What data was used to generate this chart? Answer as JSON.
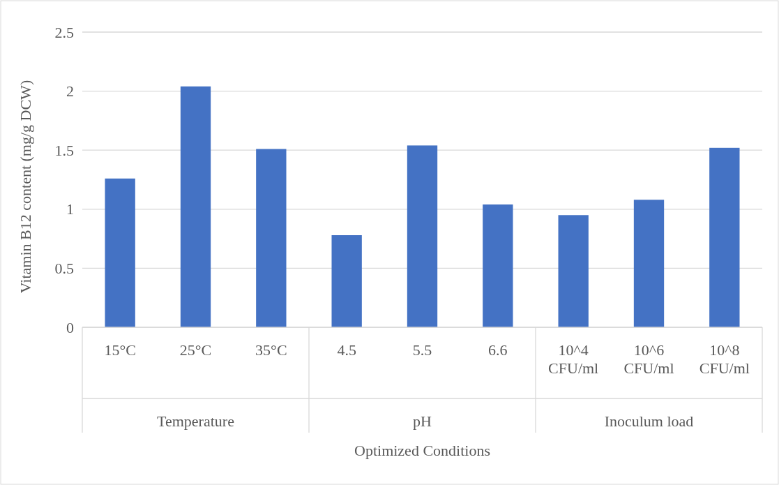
{
  "chart_data": {
    "type": "bar",
    "xlabel": "Optimized Conditions",
    "ylabel": "Vitamin B12 content (mg/g DCW)",
    "categories": [
      "15°C",
      "25°C",
      "35°C",
      "4.5",
      "5.5",
      "6.6",
      "10^4 CFU/ml",
      "10^6 CFU/ml",
      "10^8 CFU/ml"
    ],
    "values": [
      1.26,
      2.04,
      1.51,
      0.78,
      1.54,
      1.04,
      0.95,
      1.08,
      1.52
    ],
    "color": "#4472c4",
    "ylim": [
      0,
      2.5
    ],
    "yticks": [
      0,
      0.5,
      1,
      1.5,
      2,
      2.5
    ],
    "grid": "y",
    "annotations": [
      "Temperature",
      "pH",
      "Inoculum load"
    ]
  }
}
